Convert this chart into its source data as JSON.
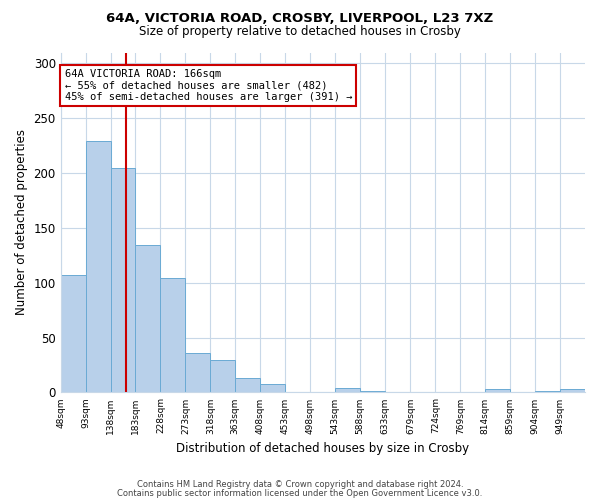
{
  "title1": "64A, VICTORIA ROAD, CROSBY, LIVERPOOL, L23 7XZ",
  "title2": "Size of property relative to detached houses in Crosby",
  "xlabel": "Distribution of detached houses by size in Crosby",
  "ylabel": "Number of detached properties",
  "bin_labels": [
    "48sqm",
    "93sqm",
    "138sqm",
    "183sqm",
    "228sqm",
    "273sqm",
    "318sqm",
    "363sqm",
    "408sqm",
    "453sqm",
    "498sqm",
    "543sqm",
    "588sqm",
    "633sqm",
    "679sqm",
    "724sqm",
    "769sqm",
    "814sqm",
    "859sqm",
    "904sqm",
    "949sqm"
  ],
  "bin_edges": [
    48,
    93,
    138,
    183,
    228,
    273,
    318,
    363,
    408,
    453,
    498,
    543,
    588,
    633,
    679,
    724,
    769,
    814,
    859,
    904,
    949,
    994
  ],
  "bar_heights": [
    107,
    229,
    205,
    134,
    104,
    36,
    30,
    13,
    8,
    0,
    0,
    4,
    1,
    0,
    0,
    0,
    0,
    3,
    0,
    1,
    3
  ],
  "bar_color": "#b8d0ea",
  "bar_edge_color": "#6aaad4",
  "property_size": 166,
  "vline_color": "#cc0000",
  "annotation_line1": "64A VICTORIA ROAD: 166sqm",
  "annotation_line2": "← 55% of detached houses are smaller (482)",
  "annotation_line3": "45% of semi-detached houses are larger (391) →",
  "annotation_box_color": "#ffffff",
  "annotation_border_color": "#cc0000",
  "ylim": [
    0,
    310
  ],
  "yticks": [
    0,
    50,
    100,
    150,
    200,
    250,
    300
  ],
  "footer1": "Contains HM Land Registry data © Crown copyright and database right 2024.",
  "footer2": "Contains public sector information licensed under the Open Government Licence v3.0.",
  "bg_color": "#ffffff",
  "grid_color": "#c8d8e8"
}
